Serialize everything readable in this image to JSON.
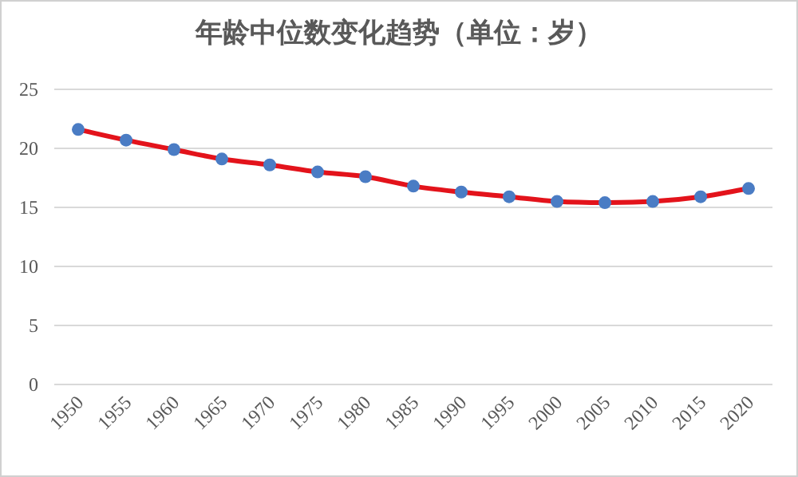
{
  "chart_data": {
    "type": "line",
    "title": "年龄中位数变化趋势（单位：岁）",
    "categories": [
      "1950",
      "1955",
      "1960",
      "1965",
      "1970",
      "1975",
      "1980",
      "1985",
      "1990",
      "1995",
      "2000",
      "2005",
      "2010",
      "2015",
      "2020"
    ],
    "series": [
      {
        "color": "#e3131b",
        "colors": [
          "#4a7cc4",
          "#4a7cc4",
          "#4a7cc4",
          "#4a7cc4",
          "#4a7cc4",
          "#4a7cc4",
          "#4a7cc4",
          "#4a7cc4",
          "#4a7cc4",
          "#4a7cc4",
          "#4a7cc4",
          "#4a7cc4",
          "#4a7cc4",
          "#4a7cc4",
          "#4a7cc4"
        ],
        "values": [
          21.6,
          20.7,
          19.9,
          19.1,
          18.6,
          18.0,
          17.6,
          16.8,
          16.3,
          15.9,
          15.5,
          15.4,
          15.5,
          15.9,
          16.6
        ]
      }
    ],
    "ylim": [
      0,
      25
    ],
    "yticks": [
      0,
      5,
      10,
      15,
      20,
      25
    ],
    "grid": "y",
    "marker": "circle",
    "line_style": "solid"
  }
}
